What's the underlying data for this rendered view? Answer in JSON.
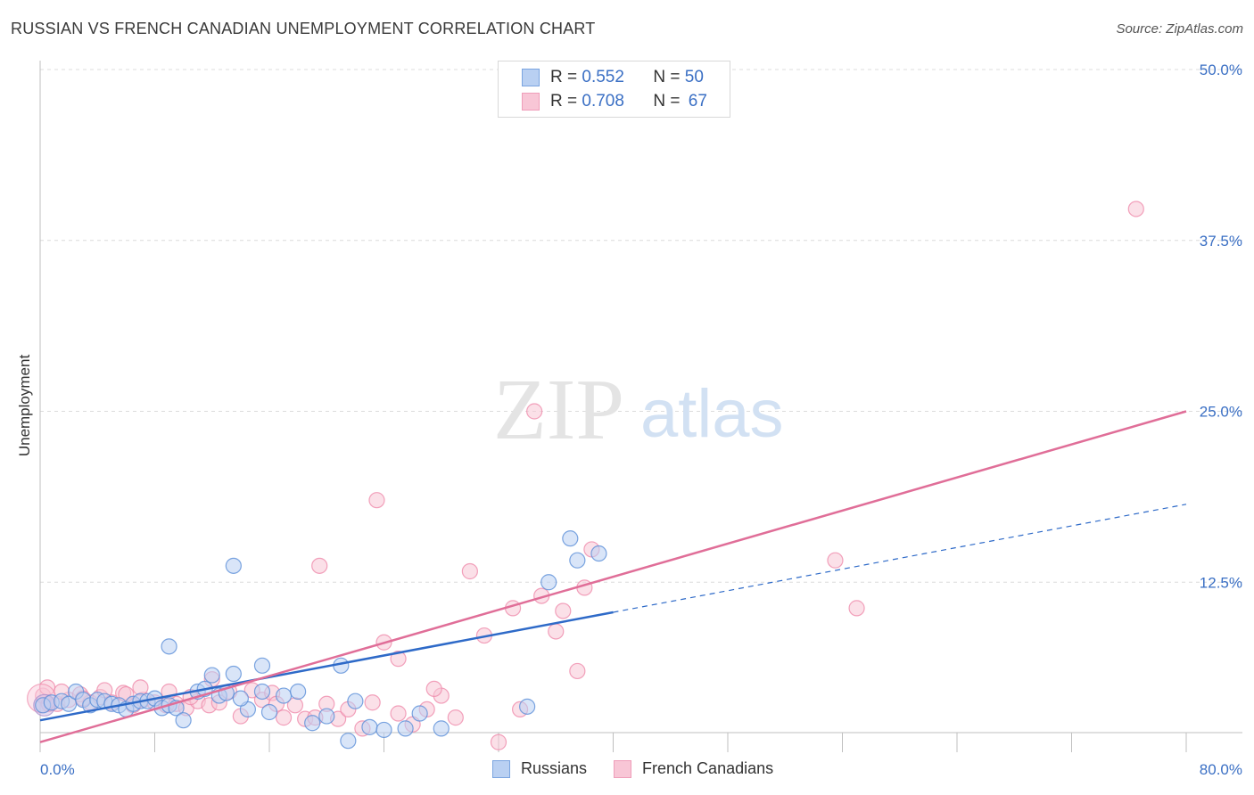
{
  "title": "RUSSIAN VS FRENCH CANADIAN UNEMPLOYMENT CORRELATION CHART",
  "source": "Source: ZipAtlas.com",
  "watermark": {
    "zip": "ZIP",
    "atlas": "atlas"
  },
  "legend": {
    "r_label": "R =",
    "n_label": "N =",
    "series": [
      {
        "name": "Russians",
        "r": "0.552",
        "n": "50",
        "color": "#8fb3e8",
        "fill": "#b9d0f2"
      },
      {
        "name": "French Canadians",
        "r": "0.708",
        "n": "67",
        "color": "#f0a0bc",
        "fill": "#f8c6d6"
      }
    ]
  },
  "chart_data": {
    "type": "scatter",
    "title": "RUSSIAN VS FRENCH CANADIAN UNEMPLOYMENT CORRELATION CHART",
    "xlabel": "",
    "ylabel": "Unemployment",
    "xlim": [
      0,
      80
    ],
    "ylim": [
      0,
      50
    ],
    "x_tick_labels": [
      "0.0%",
      "80.0%"
    ],
    "y_ticks": [
      12.5,
      25.0,
      37.5,
      50.0
    ],
    "y_tick_labels": [
      "12.5%",
      "25.0%",
      "37.5%",
      "50.0%"
    ],
    "grid": true,
    "legend_position": "top-center",
    "series": [
      {
        "name": "Russians",
        "color": "#5b8fd8",
        "fill": "#b9d0f2",
        "trend": {
          "x": [
            0,
            40
          ],
          "y": [
            2.4,
            10.3
          ],
          "extended_to": [
            80,
            18.2
          ],
          "color": "#2e6ac8"
        },
        "points": [
          [
            0.2,
            3.5
          ],
          [
            0.8,
            3.7
          ],
          [
            1.5,
            3.8
          ],
          [
            2.0,
            3.6
          ],
          [
            2.5,
            4.5
          ],
          [
            3.0,
            3.9
          ],
          [
            3.5,
            3.5
          ],
          [
            4.0,
            3.9
          ],
          [
            4.5,
            3.8
          ],
          [
            5.0,
            3.6
          ],
          [
            5.5,
            3.5
          ],
          [
            6.0,
            3.2
          ],
          [
            6.5,
            3.6
          ],
          [
            7.0,
            3.8
          ],
          [
            7.5,
            3.8
          ],
          [
            8.0,
            4.0
          ],
          [
            8.5,
            3.3
          ],
          [
            9.0,
            3.5
          ],
          [
            9.5,
            3.3
          ],
          [
            10.0,
            2.4
          ],
          [
            11.0,
            4.5
          ],
          [
            11.5,
            4.7
          ],
          [
            12.0,
            5.7
          ],
          [
            12.5,
            4.2
          ],
          [
            13.0,
            4.4
          ],
          [
            13.5,
            5.8
          ],
          [
            14.5,
            3.2
          ],
          [
            15.5,
            4.5
          ],
          [
            16.0,
            3.0
          ],
          [
            17.0,
            4.2
          ],
          [
            18.0,
            4.5
          ],
          [
            19.0,
            2.2
          ],
          [
            20.0,
            2.7
          ],
          [
            21.5,
            0.9
          ],
          [
            22.0,
            3.8
          ],
          [
            23.0,
            1.9
          ],
          [
            24.0,
            1.7
          ],
          [
            25.5,
            1.8
          ],
          [
            26.5,
            2.9
          ],
          [
            28.0,
            1.8
          ],
          [
            34.0,
            3.4
          ],
          [
            35.5,
            12.5
          ],
          [
            37.0,
            15.7
          ],
          [
            37.5,
            14.1
          ],
          [
            39.0,
            14.6
          ],
          [
            9.0,
            7.8
          ],
          [
            13.5,
            13.7
          ],
          [
            21.0,
            6.4
          ],
          [
            15.5,
            6.4
          ],
          [
            14.0,
            4.0
          ]
        ]
      },
      {
        "name": "French Canadians",
        "color": "#ef8bab",
        "fill": "#f8c6d6",
        "trend": {
          "x": [
            0,
            80
          ],
          "y": [
            0.8,
            25.0
          ],
          "color": "#e06e98"
        },
        "points": [
          [
            0.2,
            4.2
          ],
          [
            0.6,
            3.6
          ],
          [
            1.2,
            3.6
          ],
          [
            2.0,
            3.9
          ],
          [
            2.8,
            4.3
          ],
          [
            3.5,
            3.7
          ],
          [
            4.2,
            4.1
          ],
          [
            5.0,
            3.7
          ],
          [
            5.8,
            4.4
          ],
          [
            6.5,
            3.5
          ],
          [
            7.2,
            3.9
          ],
          [
            8.0,
            3.7
          ],
          [
            8.8,
            3.5
          ],
          [
            9.5,
            3.6
          ],
          [
            10.2,
            3.3
          ],
          [
            11.0,
            3.8
          ],
          [
            11.8,
            3.5
          ],
          [
            12.5,
            3.7
          ],
          [
            13.2,
            4.5
          ],
          [
            14.0,
            2.7
          ],
          [
            14.8,
            4.6
          ],
          [
            15.5,
            3.9
          ],
          [
            16.2,
            4.4
          ],
          [
            17.0,
            2.6
          ],
          [
            17.8,
            3.5
          ],
          [
            18.5,
            2.5
          ],
          [
            19.2,
            2.6
          ],
          [
            20.0,
            3.6
          ],
          [
            20.8,
            2.5
          ],
          [
            21.5,
            3.2
          ],
          [
            22.5,
            1.8
          ],
          [
            23.2,
            3.7
          ],
          [
            24.0,
            8.1
          ],
          [
            25.0,
            6.9
          ],
          [
            26.0,
            2.1
          ],
          [
            27.0,
            3.2
          ],
          [
            28.0,
            4.2
          ],
          [
            29.0,
            2.6
          ],
          [
            30.0,
            13.3
          ],
          [
            31.0,
            8.6
          ],
          [
            32.0,
            0.8
          ],
          [
            33.0,
            10.6
          ],
          [
            35.0,
            11.5
          ],
          [
            36.0,
            8.9
          ],
          [
            36.5,
            10.4
          ],
          [
            37.5,
            6.0
          ],
          [
            38.0,
            12.1
          ],
          [
            38.5,
            14.9
          ],
          [
            33.5,
            3.2
          ],
          [
            23.5,
            18.5
          ],
          [
            19.5,
            13.7
          ],
          [
            34.5,
            25.0
          ],
          [
            76.5,
            39.8
          ],
          [
            55.5,
            14.1
          ],
          [
            57.0,
            10.6
          ],
          [
            27.5,
            4.7
          ],
          [
            25.0,
            2.9
          ],
          [
            16.5,
            3.6
          ],
          [
            12.0,
            5.4
          ],
          [
            10.5,
            4.1
          ],
          [
            9.0,
            4.5
          ],
          [
            7.0,
            4.8
          ],
          [
            6.0,
            4.3
          ],
          [
            4.5,
            4.6
          ],
          [
            3.0,
            4.0
          ],
          [
            1.5,
            4.5
          ],
          [
            0.5,
            4.8
          ]
        ]
      }
    ]
  }
}
